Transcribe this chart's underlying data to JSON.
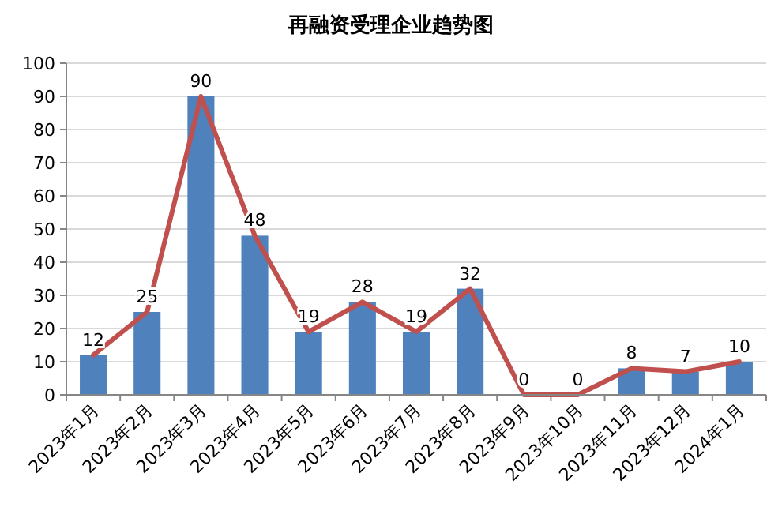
{
  "chart_data": {
    "type": "bar",
    "title": "再融资受理企业趋势图",
    "categories": [
      "2023年1月",
      "2023年2月",
      "2023年3月",
      "2023年4月",
      "2023年5月",
      "2023年6月",
      "2023年7月",
      "2023年8月",
      "2023年9月",
      "2023年10月",
      "2023年11月",
      "2023年12月",
      "2024年1月"
    ],
    "series": [
      {
        "color": "#4f81bd",
        "data_labels": true,
        "values": [
          12,
          25,
          90,
          48,
          19,
          28,
          19,
          32,
          0,
          0,
          8,
          7,
          10
        ]
      },
      {
        "type": "line",
        "color": "#c0504d",
        "marker": "none",
        "line_style": "solid",
        "values": [
          12,
          25,
          90,
          48,
          19,
          28,
          19,
          32,
          0,
          0,
          8,
          7,
          10
        ]
      }
    ],
    "ylim": [
      0,
      100
    ],
    "yticks": [
      0,
      10,
      20,
      30,
      40,
      50,
      60,
      70,
      80,
      90,
      100
    ],
    "grid": "y"
  }
}
